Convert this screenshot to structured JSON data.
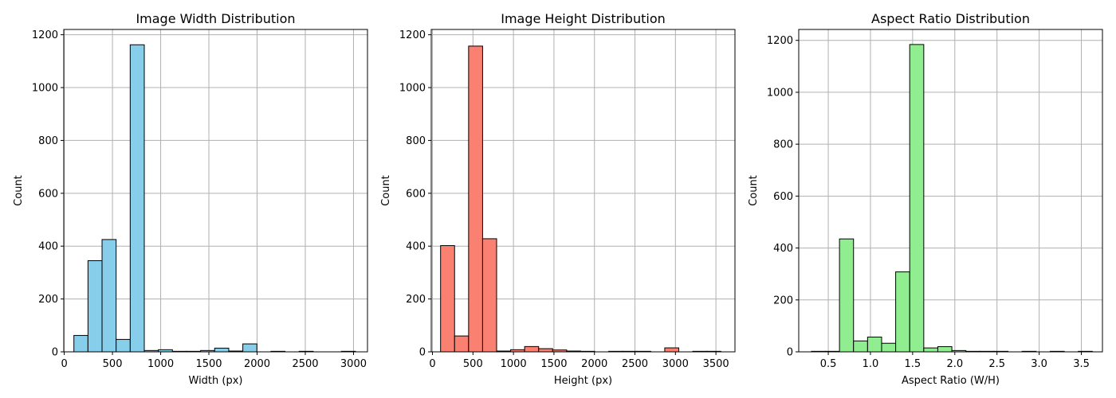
{
  "chart_data": [
    {
      "type": "bar",
      "title": "Image Width Distribution",
      "xlabel": "Width (px)",
      "ylabel": "Count",
      "color": "#87ceeb",
      "xlim": [
        -5,
        3145
      ],
      "ylim": [
        0,
        1220
      ],
      "xticks": [
        0,
        500,
        1000,
        1500,
        2000,
        2500,
        3000
      ],
      "xtick_labels": [
        "0",
        "500",
        "1000",
        "1500",
        "2000",
        "2500",
        "3000"
      ],
      "yticks": [
        0,
        200,
        400,
        600,
        800,
        1000,
        1200
      ],
      "ytick_labels": [
        "0",
        "200",
        "400",
        "600",
        "800",
        "1000",
        "1200"
      ],
      "grid": true,
      "bin_edges": [
        100,
        246,
        392,
        538,
        684,
        830,
        976,
        1122,
        1268,
        1414,
        1560,
        1706,
        1852,
        1998,
        2144,
        2290,
        2436,
        2582,
        2728,
        2874,
        3020
      ],
      "values": [
        62,
        345,
        425,
        47,
        1162,
        5,
        8,
        2,
        2,
        5,
        14,
        3,
        30,
        0,
        2,
        0,
        2,
        0,
        0,
        2
      ]
    },
    {
      "type": "bar",
      "title": "Image Height Distribution",
      "xlabel": "Height (px)",
      "ylabel": "Count",
      "color": "#fa8072",
      "xlim": [
        -15,
        3735
      ],
      "ylim": [
        0,
        1220
      ],
      "xticks": [
        0,
        500,
        1000,
        1500,
        2000,
        2500,
        3000,
        3500
      ],
      "xtick_labels": [
        "0",
        "500",
        "1000",
        "1500",
        "2000",
        "2500",
        "3000",
        "3500"
      ],
      "yticks": [
        0,
        200,
        400,
        600,
        800,
        1000,
        1200
      ],
      "ytick_labels": [
        "0",
        "200",
        "400",
        "600",
        "800",
        "1000",
        "1200"
      ],
      "grid": true,
      "bin_edges": [
        100,
        273,
        446,
        619,
        792,
        965,
        1138,
        1311,
        1484,
        1657,
        1830,
        2003,
        2176,
        2349,
        2522,
        2695,
        2868,
        3041,
        3214,
        3387,
        3560
      ],
      "values": [
        402,
        60,
        1157,
        428,
        3,
        8,
        20,
        12,
        7,
        3,
        2,
        0,
        2,
        2,
        2,
        0,
        15,
        0,
        2,
        2
      ]
    },
    {
      "type": "bar",
      "title": "Aspect Ratio Distribution",
      "xlabel": "Aspect Ratio (W/H)",
      "ylabel": "Count",
      "color": "#90ee90",
      "xlim": [
        0.15,
        3.75
      ],
      "ylim": [
        0,
        1242
      ],
      "xticks": [
        0.5,
        1.0,
        1.5,
        2.0,
        2.5,
        3.0,
        3.5
      ],
      "xtick_labels": [
        "0.5",
        "1.0",
        "1.5",
        "2.0",
        "2.5",
        "3.0",
        "3.5"
      ],
      "yticks": [
        0,
        200,
        400,
        600,
        800,
        1000,
        1200
      ],
      "ytick_labels": [
        "0",
        "200",
        "400",
        "600",
        "800",
        "1000",
        "1200"
      ],
      "grid": true,
      "bin_edges": [
        0.3,
        0.4665,
        0.633,
        0.7995,
        0.966,
        1.1325,
        1.299,
        1.4655,
        1.632,
        1.7985,
        1.965,
        2.1315,
        2.298,
        2.4645,
        2.631,
        2.7975,
        2.964,
        3.1305,
        3.297,
        3.4635,
        3.63
      ],
      "values": [
        2,
        2,
        435,
        42,
        57,
        33,
        308,
        1184,
        15,
        20,
        5,
        2,
        2,
        2,
        0,
        2,
        0,
        2,
        0,
        2
      ]
    }
  ]
}
